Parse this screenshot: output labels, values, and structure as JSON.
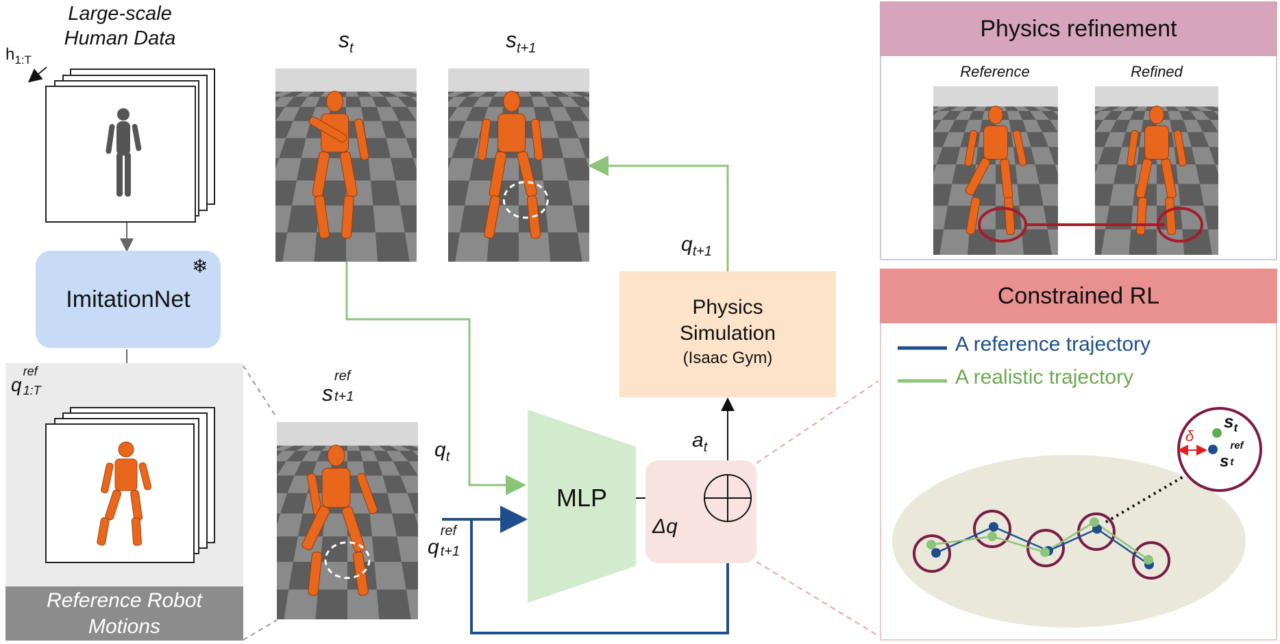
{
  "left": {
    "title_line1": "Large-scale",
    "title_line2": "Human Data",
    "h_label": "h",
    "h_sub": "1:T",
    "imitation_net": "ImitationNet",
    "snowflake": "❄",
    "q_ref_label": "q",
    "q_ref_sup": "ref",
    "q_ref_sub": "1:T",
    "ref_motion_line1": "Reference Robot",
    "ref_motion_line2": "Motions"
  },
  "center": {
    "s_t": "s",
    "s_t_sub": "t",
    "s_t1": "s",
    "s_t1_sub": "t+1",
    "s_ref": "s",
    "s_ref_sup": "ref",
    "s_ref_sub": "t+1",
    "q_t": "q",
    "q_t_sub": "t",
    "q_ref_next": "q",
    "q_ref_next_sup": "ref",
    "q_ref_next_sub": "t+1",
    "mlp": "MLP",
    "a_t": "a",
    "a_t_sub": "t",
    "delta_q": "Δq",
    "q_next": "q",
    "q_next_sub": "t+1",
    "sim_line1": "Physics",
    "sim_line2": "Simulation",
    "sim_line3": "(Isaac Gym)"
  },
  "right": {
    "physics_title": "Physics refinement",
    "reference": "Reference",
    "refined": "Refined",
    "rl_title": "Constrained RL",
    "legend_ref": "A reference trajectory",
    "legend_real": "A realistic trajectory",
    "delta": "δ",
    "zoom_st": "s",
    "zoom_st_sub": "t",
    "zoom_sref": "s",
    "zoom_sref_sup": "ref",
    "zoom_sref_sub": "t"
  },
  "colors": {
    "green_arrow": "#8cc47a",
    "blue_arrow": "#1f4e8c",
    "imitation_bg": "#c7dbf6",
    "sim_bg": "#fde3c9",
    "mlp_bg": "#d2ebcd",
    "plus_bg": "#f9e3e1",
    "physics_header": "#d6a5bb",
    "rl_header": "#e99090",
    "ellipse_bg": "#e9e8db",
    "circle_ring": "#7a1c43",
    "robot": "#e8671c"
  }
}
